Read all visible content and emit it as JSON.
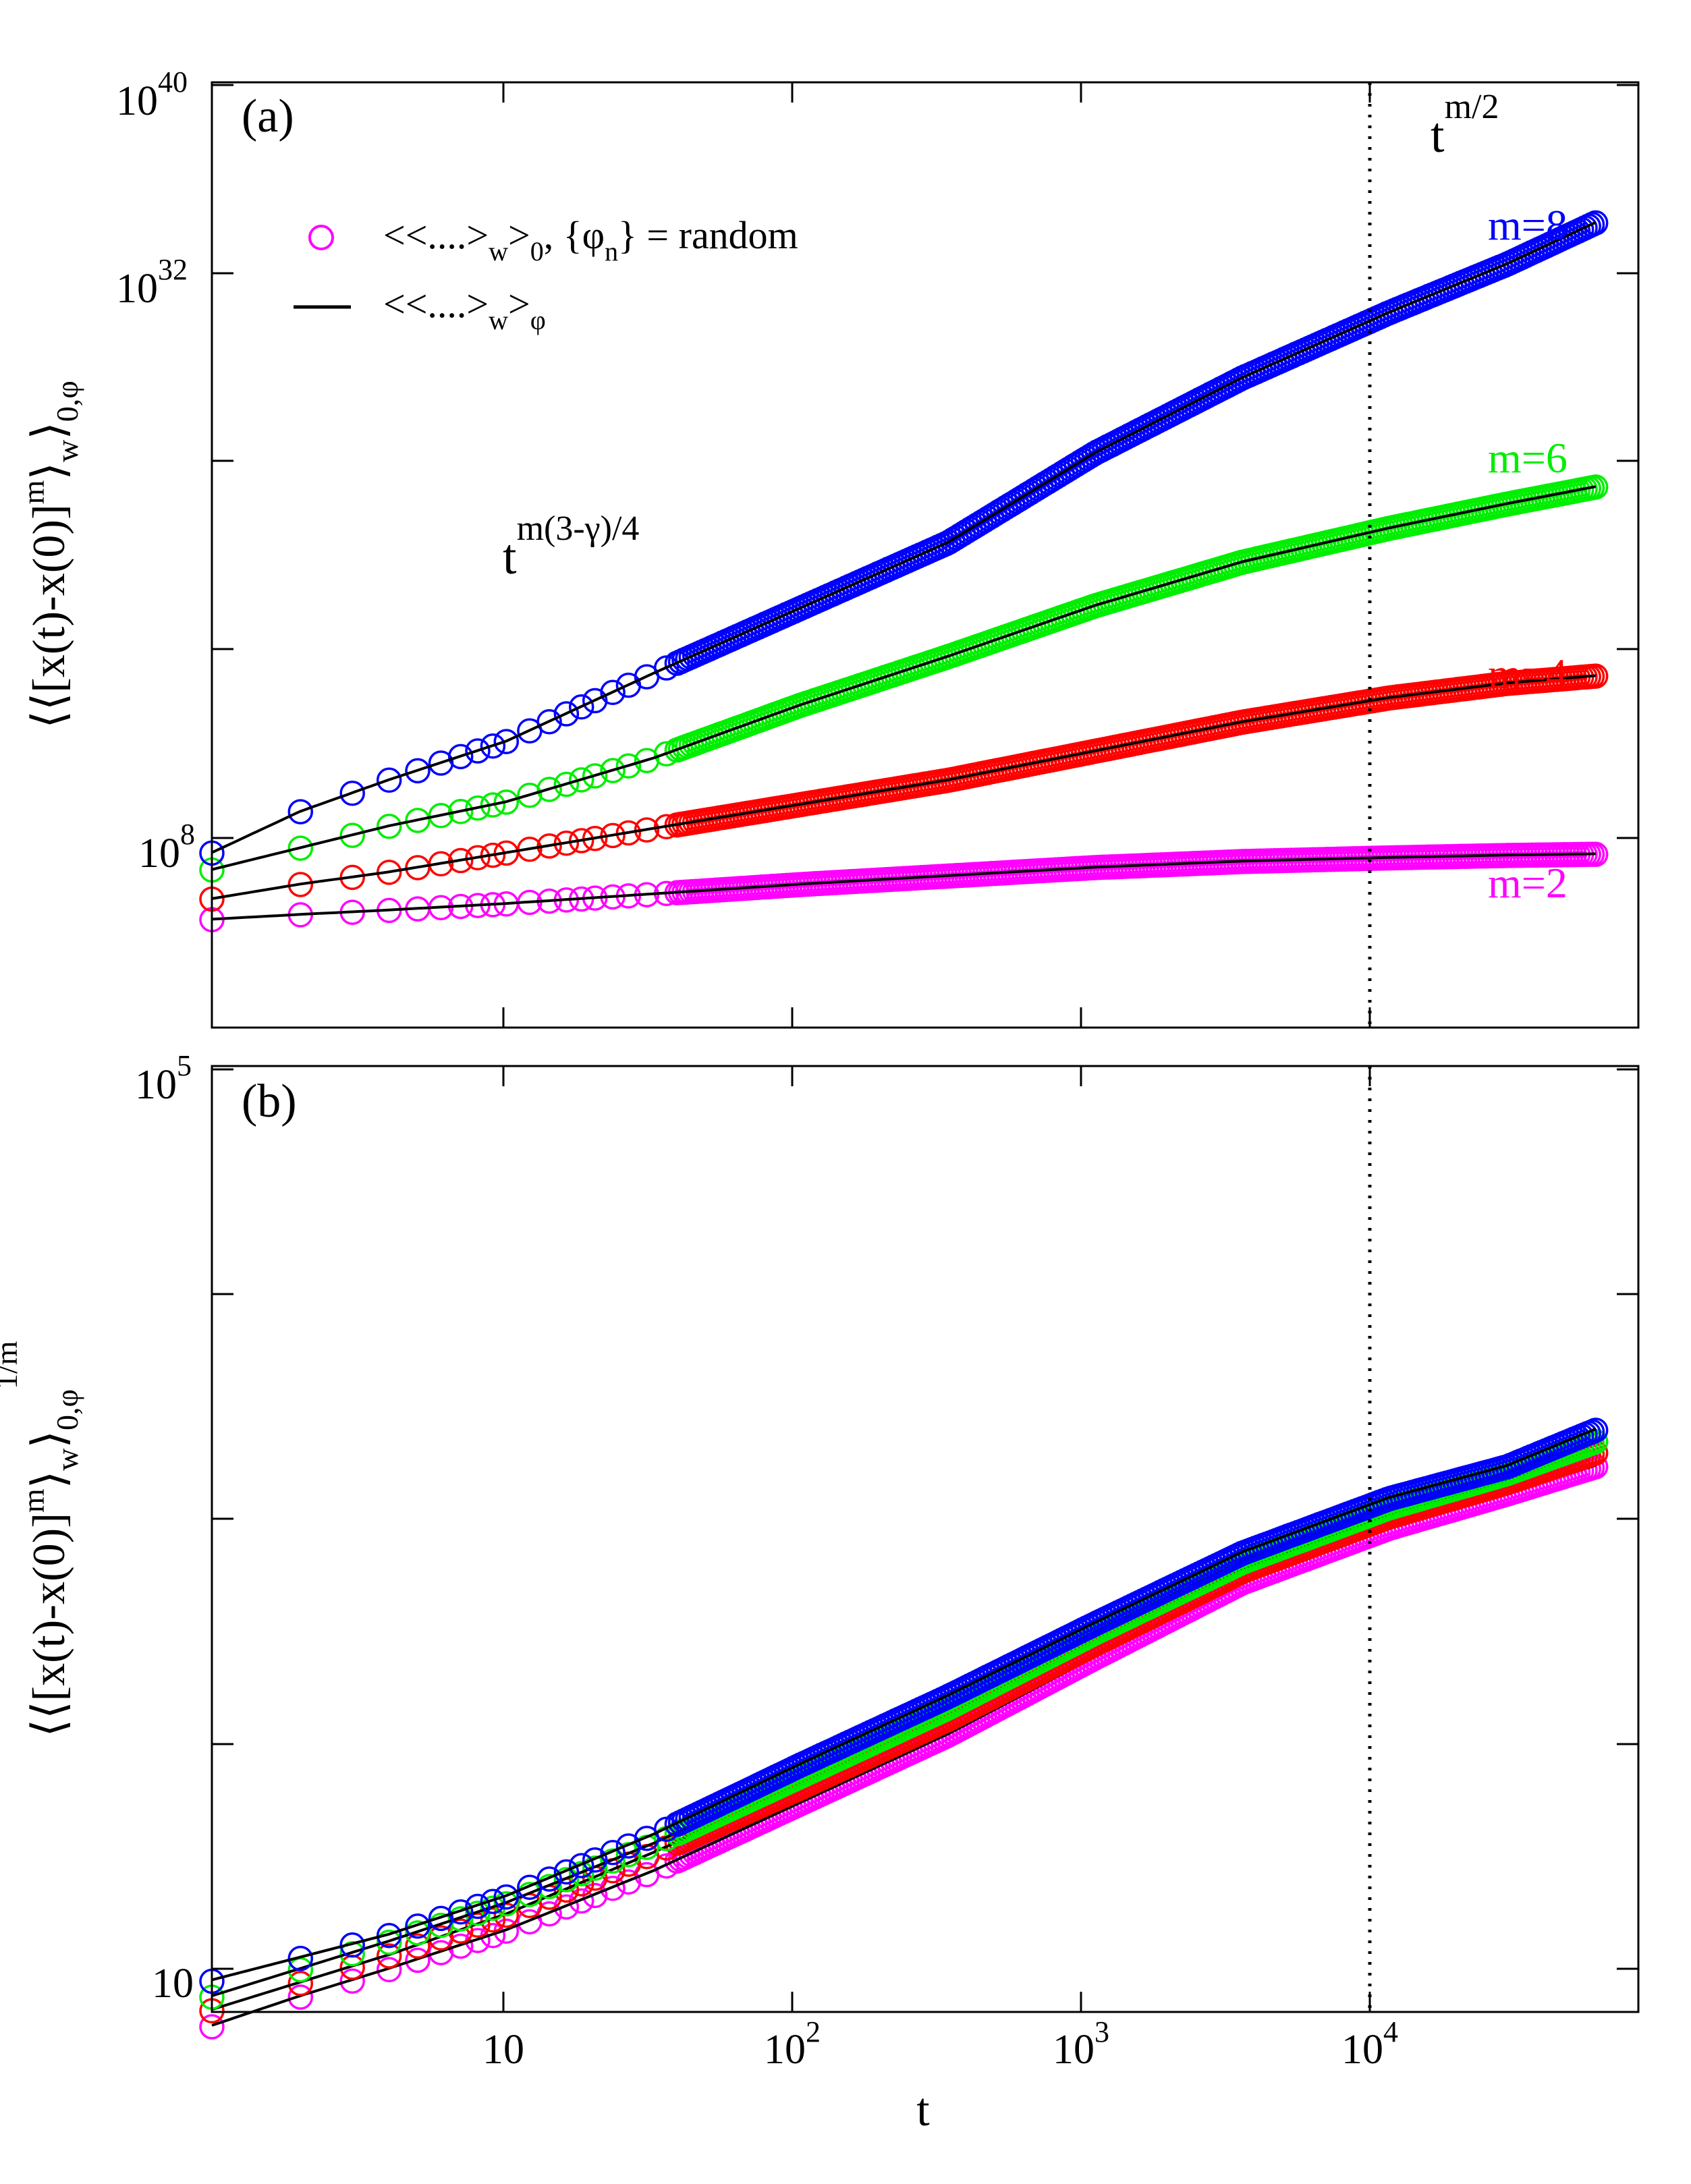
{
  "figure": {
    "xlabel": "t",
    "ylabel_a": {
      "base": "⟨⟨[x(t)-x(0)]",
      "pow": "m",
      "close": "⟩",
      "sub1": "w",
      "close2": "⟩",
      "sub2": "0,φ"
    },
    "ylabel_b": {
      "base": "⟨⟨[x(t)-x(0)]",
      "pow": "m",
      "close": "⟩",
      "sub1": "w",
      "close2": "⟩",
      "sub2": "0,φ",
      "outer_pow": "1/m"
    },
    "x_tick_labels": [
      {
        "base": "10",
        "exp": ""
      },
      {
        "base": "10",
        "exp": "2"
      },
      {
        "base": "10",
        "exp": "3"
      },
      {
        "base": "10",
        "exp": "4"
      }
    ],
    "legend": {
      "row1": {
        "a": "<<....>",
        "s1": "w",
        "b": ">",
        "s2": "0",
        "c": ", {φ",
        "s3": "n",
        "d": "} = random"
      },
      "row2": {
        "a": "<<....>",
        "s1": "w",
        "b": ">",
        "s2": "φ"
      }
    },
    "colors": {
      "m2": "#ff00ff",
      "m4": "#ff0000",
      "m6": "#00ee00",
      "m8": "#0000ff",
      "fit": "#000000",
      "vline": "#000000"
    }
  },
  "chart_data": [
    {
      "type": "scatter",
      "panel_label": "(a)",
      "xscale": "log",
      "yscale": "log",
      "xlim": [
        1,
        70000
      ],
      "ylim": [
        10,
        1e+40
      ],
      "xlabel": "t",
      "y_tick_labels": [
        {
          "value": 100000000.0,
          "base": "10",
          "exp": "8"
        },
        {
          "value": 1e+32,
          "base": "10",
          "exp": "32"
        },
        {
          "value": 1e+40,
          "base": "10",
          "exp": "40"
        }
      ],
      "annotations": [
        {
          "id": "slope-late",
          "base": "t",
          "exp": "m/2"
        },
        {
          "id": "slope-early",
          "base": "t",
          "exp": "m(3-γ)/4"
        }
      ],
      "vline_x": 10000,
      "series": [
        {
          "name": "m=2",
          "log10_y_at_log10_t": [
            [
              0,
              5.45
            ],
            [
              0.3,
              5.65
            ],
            [
              0.6,
              5.83
            ],
            [
              1,
              6.1
            ],
            [
              1.5,
              6.5
            ],
            [
              2,
              6.9
            ],
            [
              2.5,
              7.25
            ],
            [
              3,
              7.6
            ],
            [
              3.5,
              7.85
            ],
            [
              4,
              8.0
            ],
            [
              4.4,
              8.1
            ],
            [
              4.7,
              8.15
            ]
          ]
        },
        {
          "name": "m=4",
          "log10_y_at_log10_t": [
            [
              0,
              6.3
            ],
            [
              0.3,
              6.9
            ],
            [
              0.6,
              7.4
            ],
            [
              1,
              8.2
            ],
            [
              1.5,
              9.2
            ],
            [
              2,
              10.2
            ],
            [
              2.5,
              11.2
            ],
            [
              3,
              12.4
            ],
            [
              3.5,
              13.6
            ],
            [
              4,
              14.6
            ],
            [
              4.4,
              15.2
            ],
            [
              4.7,
              15.5
            ]
          ]
        },
        {
          "name": "m=6",
          "log10_y_at_log10_t": [
            [
              0,
              7.5
            ],
            [
              0.3,
              8.4
            ],
            [
              0.6,
              9.3
            ],
            [
              1,
              10.3
            ],
            [
              1.5,
              12.1
            ],
            [
              2,
              14.3
            ],
            [
              2.5,
              16.3
            ],
            [
              3,
              18.4
            ],
            [
              3.5,
              20.2
            ],
            [
              4,
              21.6
            ],
            [
              4.4,
              22.6
            ],
            [
              4.7,
              23.3
            ]
          ]
        },
        {
          "name": "m=8",
          "log10_y_at_log10_t": [
            [
              0,
              8.2
            ],
            [
              0.3,
              9.9
            ],
            [
              0.6,
              11.2
            ],
            [
              1,
              12.8
            ],
            [
              1.5,
              15.6
            ],
            [
              2,
              18.3
            ],
            [
              2.5,
              21.0
            ],
            [
              3,
              24.7
            ],
            [
              3.5,
              27.8
            ],
            [
              4,
              30.5
            ],
            [
              4.4,
              32.5
            ],
            [
              4.7,
              34.2
            ]
          ]
        }
      ]
    },
    {
      "type": "scatter",
      "panel_label": "(b)",
      "xscale": "log",
      "yscale": "log",
      "xlim": [
        1,
        70000
      ],
      "ylim": [
        7,
        100000
      ],
      "xlabel": "t",
      "y_tick_labels": [
        {
          "value": 10,
          "base": "10",
          "exp": ""
        },
        {
          "value": 100000,
          "base": "10",
          "exp": "5"
        }
      ],
      "vline_x": 10000,
      "series": [
        {
          "name": "m=2",
          "log10_y_at_log10_t": [
            [
              0,
              0.78
            ],
            [
              0.3,
              0.91
            ],
            [
              0.6,
              1.03
            ],
            [
              1,
              1.2
            ],
            [
              1.5,
              1.46
            ],
            [
              2,
              1.76
            ],
            [
              2.5,
              2.06
            ],
            [
              3,
              2.4
            ],
            [
              3.5,
              2.73
            ],
            [
              4,
              2.97
            ],
            [
              4.4,
              3.12
            ],
            [
              4.7,
              3.24
            ]
          ]
        },
        {
          "name": "m=4",
          "log10_y_at_log10_t": [
            [
              0,
              0.85
            ],
            [
              0.3,
              0.97
            ],
            [
              0.6,
              1.09
            ],
            [
              1,
              1.27
            ],
            [
              1.5,
              1.54
            ],
            [
              2,
              1.83
            ],
            [
              2.5,
              2.13
            ],
            [
              3,
              2.46
            ],
            [
              3.5,
              2.78
            ],
            [
              4,
              3.02
            ],
            [
              4.4,
              3.17
            ],
            [
              4.7,
              3.3
            ]
          ]
        },
        {
          "name": "m=6",
          "log10_y_at_log10_t": [
            [
              0,
              0.91
            ],
            [
              0.3,
              1.03
            ],
            [
              0.6,
              1.15
            ],
            [
              1,
              1.32
            ],
            [
              1.5,
              1.58
            ],
            [
              2,
              1.88
            ],
            [
              2.5,
              2.18
            ],
            [
              3,
              2.51
            ],
            [
              3.5,
              2.82
            ],
            [
              4,
              3.06
            ],
            [
              4.4,
              3.21
            ],
            [
              4.7,
              3.35
            ]
          ]
        },
        {
          "name": "m=8",
          "log10_y_at_log10_t": [
            [
              0,
              0.98
            ],
            [
              0.3,
              1.08
            ],
            [
              0.6,
              1.18
            ],
            [
              1,
              1.35
            ],
            [
              1.5,
              1.62
            ],
            [
              2,
              1.93
            ],
            [
              2.5,
              2.23
            ],
            [
              3,
              2.55
            ],
            [
              3.5,
              2.86
            ],
            [
              4,
              3.1
            ],
            [
              4.4,
              3.24
            ],
            [
              4.7,
              3.4
            ]
          ]
        }
      ]
    }
  ]
}
